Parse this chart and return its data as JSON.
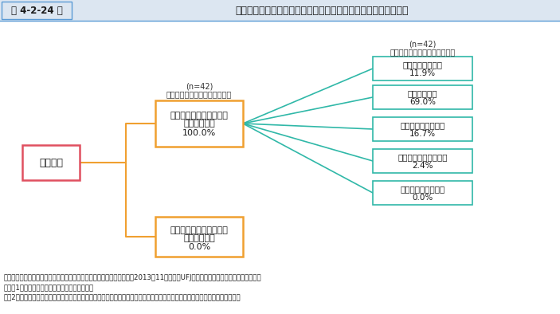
{
  "title": "第 4-2-24 図",
  "title_main": "国の中小企業・小規模事業者施策の活用状況、評価（都道府県）",
  "root_label": "都道府県",
  "level2_label_top_line1": "施策の立案時に参考にし",
  "level2_label_top_line2": "たことがある",
  "level2_label_top_line3": "100.0%",
  "level2_label_bottom_line1": "施策の立案時に参考にし",
  "level2_label_bottom_line2": "たことがない",
  "level2_label_bottom_line3": "0.0%",
  "level2_note_line1": "(n=42)",
  "level2_note_line2": "中小企業・小規模事業者施策を",
  "level3_note_line1": "(n=42)",
  "level3_note_line2": "中小企業・小規模事業者施策を",
  "level3_boxes": [
    {
      "line1": "高く評価している",
      "line2": "11.9%"
    },
    {
      "line1": "評価している",
      "line2": "69.0%"
    },
    {
      "line1": "どちらとも言えない",
      "line2": "16.7%"
    },
    {
      "line1": "あまり評価していない",
      "line2": "2.4%"
    },
    {
      "line1": "全く評価していない",
      "line2": "0.0%"
    }
  ],
  "root_color": "#e05060",
  "level2_color": "#f0a030",
  "level3_color": "#30b8a8",
  "root_fill": "#ffffff",
  "level2_fill": "#ffffff",
  "level3_fill": "#ffffff",
  "line_color_orange": "#f0a030",
  "line_color_teal": "#30b8a8",
  "footnote1": "資料：中小企業庁委託「自治体の中小企業支援の実態に関する調査」（2013年11月、三菱UFJリサーチ＆コンサルティング（株））",
  "footnote2": "（注）1．市区町村には、政令指定都市を含む。",
  "footnote3": "　　2．他の自治体とは、市区町村の場合は、市区町村が所属する都道府県、都道府県の場合は、都道府県内の市区町村を指す。",
  "bg_color": "#ffffff",
  "header_bg": "#dce6f1",
  "title_color": "#1f4e79",
  "body_color": "#1f1f1f"
}
